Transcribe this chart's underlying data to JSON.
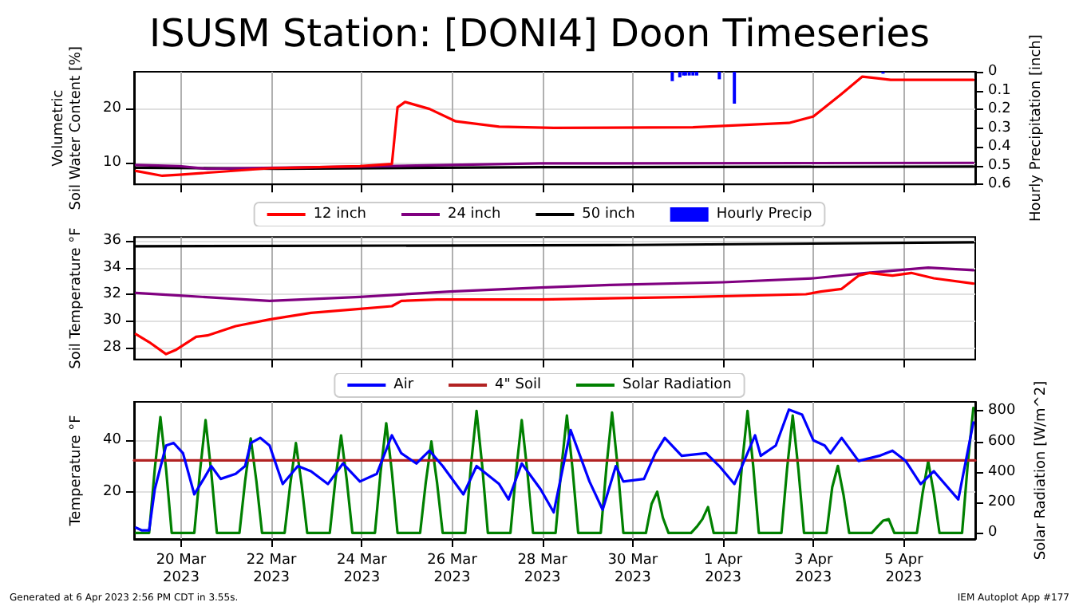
{
  "chart_data": [
    {
      "type": "line",
      "title": "ISUSM Station: [DONI4] Doon Timeseries",
      "ylabel": "Volumetric\nSoil Water Content [%]",
      "y2label": "Hourly Precipitation [inch]",
      "xlim": [
        "2023-03-18T23:00",
        "2023-04-06T14:00"
      ],
      "xticks": [
        {
          "value": "2023-03-20",
          "label": null
        },
        {
          "value": "2023-03-22",
          "label": null
        },
        {
          "value": "2023-03-24",
          "label": null
        },
        {
          "value": "2023-03-26",
          "label": null
        },
        {
          "value": "2023-03-28",
          "label": null
        },
        {
          "value": "2023-03-30",
          "label": null
        },
        {
          "value": "2023-04-01",
          "label": null
        },
        {
          "value": "2023-04-03",
          "label": null
        },
        {
          "value": "2023-04-05",
          "label": null
        }
      ],
      "ylim": [
        5.9,
        26.8
      ],
      "yticks": [
        10,
        20
      ],
      "y2lim": [
        0.6,
        0
      ],
      "y2ticks": [
        0,
        0.1,
        0.2,
        0.3,
        0.4,
        0.5,
        0.6
      ],
      "grid": true,
      "legend": "bottom",
      "tick_labels": "y",
      "series": [
        {
          "name": "12 inch",
          "color": "#ff0000",
          "x": [
            "2023-03-19T00:00",
            "2023-03-19T14:00",
            "2023-03-19T23:00",
            "2023-03-21T23:00",
            "2023-03-23T23:00",
            "2023-03-24T16:00",
            "2023-03-24T19:00",
            "2023-03-24T23:00",
            "2023-03-25T12:00",
            "2023-03-26T02:00",
            "2023-03-27T01:00",
            "2023-03-28T06:00",
            "2023-03-31T08:00",
            "2023-04-02T11:00",
            "2023-04-03T00:00",
            "2023-04-03T15:00",
            "2023-04-04T02:00",
            "2023-04-04T07:00",
            "2023-04-04T17:00",
            "2023-04-06T13:00"
          ],
          "values": [
            8.4,
            7.5,
            7.7,
            8.9,
            9.3,
            9.7,
            20.2,
            21.2,
            19.9,
            17.6,
            16.6,
            16.4,
            16.5,
            17.3,
            18.5,
            22.7,
            25.9,
            25.7,
            25.3,
            25.3
          ]
        },
        {
          "name": "24 inch",
          "color": "#800080",
          "x": [
            "2023-03-19T00:00",
            "2023-03-19T23:00",
            "2023-03-20T14:00",
            "2023-03-23T23:00",
            "2023-03-25T23:00",
            "2023-03-27T23:00",
            "2023-04-06T13:00"
          ],
          "values": [
            9.5,
            9.3,
            8.8,
            9.2,
            9.5,
            9.8,
            9.9
          ]
        },
        {
          "name": "50 inch",
          "color": "#000000",
          "x": [
            "2023-03-19T00:00",
            "2023-03-22T03:00",
            "2023-03-27T23:00",
            "2023-04-06T13:00"
          ],
          "values": [
            9.0,
            8.8,
            9.1,
            9.2
          ]
        },
        {
          "name": "Hourly Precip",
          "type": "bar",
          "axis": "y2",
          "color": "#0000ff",
          "x": [
            "2023-03-30T21:00",
            "2023-03-31T01:00",
            "2023-03-31T03:00",
            "2023-03-31T04:00",
            "2023-03-31T06:00",
            "2023-03-31T08:00",
            "2023-03-31T10:00",
            "2023-03-31T22:00",
            "2023-04-01T06:00",
            "2023-04-04T13:00"
          ],
          "values": [
            0.05,
            0.03,
            0.02,
            0.02,
            0.02,
            0.02,
            0.02,
            0.04,
            0.17,
            0.01
          ]
        }
      ]
    },
    {
      "type": "line",
      "ylabel": "Soil Temperature °F",
      "xlim": [
        "2023-03-18T23:00",
        "2023-04-06T14:00"
      ],
      "xticks": [
        {
          "value": "2023-03-20",
          "label": null
        },
        {
          "value": "2023-03-22",
          "label": null
        },
        {
          "value": "2023-03-24",
          "label": null
        },
        {
          "value": "2023-03-26",
          "label": null
        },
        {
          "value": "2023-03-28",
          "label": null
        },
        {
          "value": "2023-03-30",
          "label": null
        },
        {
          "value": "2023-04-01",
          "label": null
        },
        {
          "value": "2023-04-03",
          "label": null
        },
        {
          "value": "2023-04-05",
          "label": null
        }
      ],
      "ylim": [
        27.1,
        36.3
      ],
      "yticks": [
        28,
        30,
        32,
        34,
        36
      ],
      "grid": true,
      "tick_labels": "y",
      "series": [
        {
          "color": "#ff0000",
          "x": [
            "2023-03-19T00:00",
            "2023-03-19T07:00",
            "2023-03-19T16:00",
            "2023-03-19T21:00",
            "2023-03-20T08:00",
            "2023-03-20T14:00",
            "2023-03-21T05:00",
            "2023-03-21T23:00",
            "2023-03-22T21:00",
            "2023-03-23T23:00",
            "2023-03-24T16:00",
            "2023-03-24T21:00",
            "2023-03-25T16:00",
            "2023-03-27T23:00",
            "2023-03-31T08:00",
            "2023-04-02T20:00",
            "2023-04-03T04:00",
            "2023-04-03T15:00",
            "2023-04-04T00:00",
            "2023-04-04T06:00",
            "2023-04-04T18:00",
            "2023-04-05T04:00",
            "2023-04-05T16:00",
            "2023-04-06T13:00"
          ],
          "values": [
            29.0,
            28.4,
            27.5,
            27.8,
            28.8,
            28.9,
            29.6,
            30.1,
            30.6,
            30.9,
            31.1,
            31.5,
            31.6,
            31.6,
            31.8,
            32.0,
            32.2,
            32.4,
            33.4,
            33.6,
            33.4,
            33.6,
            33.2,
            32.8
          ]
        },
        {
          "color": "#800080",
          "x": [
            "2023-03-19T00:00",
            "2023-03-19T23:00",
            "2023-03-21T23:00",
            "2023-03-23T23:00",
            "2023-03-25T23:00",
            "2023-03-27T23:00",
            "2023-03-29T12:00",
            "2023-04-01T00:00",
            "2023-04-03T00:00",
            "2023-04-04T04:00",
            "2023-04-05T13:00",
            "2023-04-06T13:00"
          ],
          "values": [
            32.1,
            31.9,
            31.5,
            31.8,
            32.2,
            32.5,
            32.7,
            32.9,
            33.2,
            33.6,
            34.0,
            33.8
          ]
        },
        {
          "color": "#000000",
          "x": [
            "2023-03-19T00:00",
            "2023-03-29T23:00",
            "2023-04-06T13:00"
          ],
          "values": [
            35.6,
            35.7,
            35.9
          ]
        }
      ]
    },
    {
      "type": "line",
      "ylabel": "Temperature °F",
      "y2label": "Solar Radiation [W/m^2]",
      "xlim": [
        "2023-03-18T23:00",
        "2023-04-06T14:00"
      ],
      "xticks": [
        {
          "value": "2023-03-20",
          "label": "20 Mar\n2023"
        },
        {
          "value": "2023-03-22",
          "label": "22 Mar\n2023"
        },
        {
          "value": "2023-03-24",
          "label": "24 Mar\n2023"
        },
        {
          "value": "2023-03-26",
          "label": "26 Mar\n2023"
        },
        {
          "value": "2023-03-28",
          "label": "28 Mar\n2023"
        },
        {
          "value": "2023-03-30",
          "label": "30 Mar\n2023"
        },
        {
          "value": "2023-04-01",
          "label": "1 Apr\n2023"
        },
        {
          "value": "2023-04-03",
          "label": "3 Apr\n2023"
        },
        {
          "value": "2023-04-05",
          "label": "5 Apr\n2023"
        }
      ],
      "ylim": [
        1.6,
        55
      ],
      "yticks": [
        20,
        40
      ],
      "y2lim": [
        -40,
        860
      ],
      "y2ticks": [
        0,
        200,
        400,
        600,
        800
      ],
      "grid": true,
      "legend": "top",
      "annotations": [
        "Generated at 6 Apr 2023 2:56 PM CDT in 3.55s.",
        "IEM Autoplot App #177"
      ],
      "series": [
        {
          "name": "Air",
          "color": "#0000ff",
          "x": [
            "2023-03-19T00:00",
            "2023-03-19T03:00",
            "2023-03-19T07:00",
            "2023-03-19T10:00",
            "2023-03-19T16:00",
            "2023-03-19T20:00",
            "2023-03-20T01:00",
            "2023-03-20T07:00",
            "2023-03-20T12:00",
            "2023-03-20T16:00",
            "2023-03-20T21:00",
            "2023-03-21T05:00",
            "2023-03-21T10:00",
            "2023-03-21T13:00",
            "2023-03-21T18:00",
            "2023-03-21T23:00",
            "2023-03-22T06:00",
            "2023-03-22T14:00",
            "2023-03-22T21:00",
            "2023-03-23T06:00",
            "2023-03-23T14:00",
            "2023-03-23T23:00",
            "2023-03-24T08:00",
            "2023-03-24T16:00",
            "2023-03-24T21:00",
            "2023-03-25T05:00",
            "2023-03-25T12:00",
            "2023-03-25T19:00",
            "2023-03-26T06:00",
            "2023-03-26T13:00",
            "2023-03-27T01:00",
            "2023-03-27T06:00",
            "2023-03-27T13:00",
            "2023-03-27T23:00",
            "2023-03-28T06:00",
            "2023-03-28T15:00",
            "2023-03-29T01:00",
            "2023-03-29T08:00",
            "2023-03-29T15:00",
            "2023-03-29T19:00",
            "2023-03-30T06:00",
            "2023-03-30T12:00",
            "2023-03-30T17:00",
            "2023-03-31T02:00",
            "2023-03-31T15:00",
            "2023-03-31T22:00",
            "2023-04-01T06:00",
            "2023-04-01T17:00",
            "2023-04-01T20:00",
            "2023-04-02T04:00",
            "2023-04-02T11:00",
            "2023-04-02T18:00",
            "2023-04-03T00:00",
            "2023-04-03T06:00",
            "2023-04-03T09:00",
            "2023-04-03T15:00",
            "2023-04-04T00:00",
            "2023-04-04T11:00",
            "2023-04-04T18:00",
            "2023-04-05T01:00",
            "2023-04-05T09:00",
            "2023-04-05T16:00",
            "2023-04-06T05:00",
            "2023-04-06T13:00"
          ],
          "values": [
            6,
            5,
            5,
            21,
            38,
            39,
            35,
            19,
            25,
            30,
            25,
            27,
            30,
            39,
            41,
            38,
            23,
            30,
            28,
            23,
            31,
            24,
            27,
            42,
            35,
            31,
            36,
            30,
            19,
            30,
            23,
            17,
            31,
            21,
            12,
            44,
            24,
            13,
            30,
            24,
            25,
            35,
            41,
            34,
            35,
            30,
            23,
            42,
            34,
            38,
            52,
            50,
            40,
            38,
            35,
            41,
            32,
            34,
            36,
            32,
            23,
            28,
            17,
            47
          ]
        },
        {
          "name": "4\" Soil",
          "color": "#b22222",
          "x": [
            "2023-03-18T23:00",
            "2023-04-06T14:00"
          ],
          "values": [
            32.2,
            32.2
          ]
        },
        {
          "name": "Solar Radiation",
          "axis": "y2",
          "color": "#008000",
          "x": [
            "2023-03-19T00:00",
            "2023-03-19T07:00",
            "2023-03-19T10:00",
            "2023-03-19T13:00",
            "2023-03-19T16:00",
            "2023-03-19T19:00",
            "2023-03-20T07:00",
            "2023-03-20T10:00",
            "2023-03-20T13:00",
            "2023-03-20T16:00",
            "2023-03-20T19:00",
            "2023-03-21T07:00",
            "2023-03-21T10:00",
            "2023-03-21T13:00",
            "2023-03-21T16:00",
            "2023-03-21T19:00",
            "2023-03-22T07:00",
            "2023-03-22T10:00",
            "2023-03-22T13:00",
            "2023-03-22T16:00",
            "2023-03-22T19:00",
            "2023-03-23T07:00",
            "2023-03-23T10:00",
            "2023-03-23T13:00",
            "2023-03-23T16:00",
            "2023-03-23T19:00",
            "2023-03-24T07:00",
            "2023-03-24T10:00",
            "2023-03-24T13:00",
            "2023-03-24T16:00",
            "2023-03-24T19:00",
            "2023-03-25T07:00",
            "2023-03-25T10:00",
            "2023-03-25T13:00",
            "2023-03-25T16:00",
            "2023-03-25T19:00",
            "2023-03-26T07:00",
            "2023-03-26T10:00",
            "2023-03-26T13:00",
            "2023-03-26T16:00",
            "2023-03-26T19:00",
            "2023-03-27T07:00",
            "2023-03-27T10:00",
            "2023-03-27T13:00",
            "2023-03-27T16:00",
            "2023-03-27T19:00",
            "2023-03-28T07:00",
            "2023-03-28T10:00",
            "2023-03-28T13:00",
            "2023-03-28T16:00",
            "2023-03-28T19:00",
            "2023-03-29T07:00",
            "2023-03-29T10:00",
            "2023-03-29T13:00",
            "2023-03-29T16:00",
            "2023-03-29T19:00",
            "2023-03-30T07:00",
            "2023-03-30T10:00",
            "2023-03-30T13:00",
            "2023-03-30T16:00",
            "2023-03-30T19:00",
            "2023-03-31T07:00",
            "2023-03-31T10:00",
            "2023-03-31T13:00",
            "2023-03-31T16:00",
            "2023-03-31T19:00",
            "2023-04-01T07:00",
            "2023-04-01T10:00",
            "2023-04-01T13:00",
            "2023-04-01T16:00",
            "2023-04-01T19:00",
            "2023-04-02T07:00",
            "2023-04-02T10:00",
            "2023-04-02T13:00",
            "2023-04-02T16:00",
            "2023-04-02T19:00",
            "2023-04-03T07:00",
            "2023-04-03T10:00",
            "2023-04-03T13:00",
            "2023-04-03T16:00",
            "2023-04-03T19:00",
            "2023-04-04T07:00",
            "2023-04-04T10:00",
            "2023-04-04T13:00",
            "2023-04-04T16:00",
            "2023-04-04T19:00",
            "2023-04-05T07:00",
            "2023-04-05T10:00",
            "2023-04-05T13:00",
            "2023-04-05T16:00",
            "2023-04-05T19:00",
            "2023-04-06T07:00",
            "2023-04-06T10:00",
            "2023-04-06T13:00"
          ],
          "values": [
            0,
            0,
            420,
            760,
            420,
            0,
            0,
            400,
            740,
            400,
            0,
            0,
            340,
            620,
            340,
            0,
            0,
            320,
            590,
            320,
            0,
            0,
            350,
            640,
            350,
            0,
            0,
            400,
            720,
            400,
            0,
            0,
            330,
            600,
            330,
            0,
            0,
            440,
            800,
            440,
            0,
            0,
            400,
            740,
            400,
            0,
            0,
            420,
            770,
            420,
            0,
            0,
            430,
            790,
            430,
            0,
            0,
            190,
            270,
            100,
            0,
            0,
            40,
            90,
            170,
            0,
            0,
            440,
            800,
            440,
            0,
            0,
            420,
            770,
            420,
            0,
            0,
            300,
            440,
            250,
            0,
            0,
            40,
            80,
            90,
            0,
            0,
            260,
            470,
            260,
            0,
            0,
            450,
            820
          ]
        }
      ]
    }
  ]
}
